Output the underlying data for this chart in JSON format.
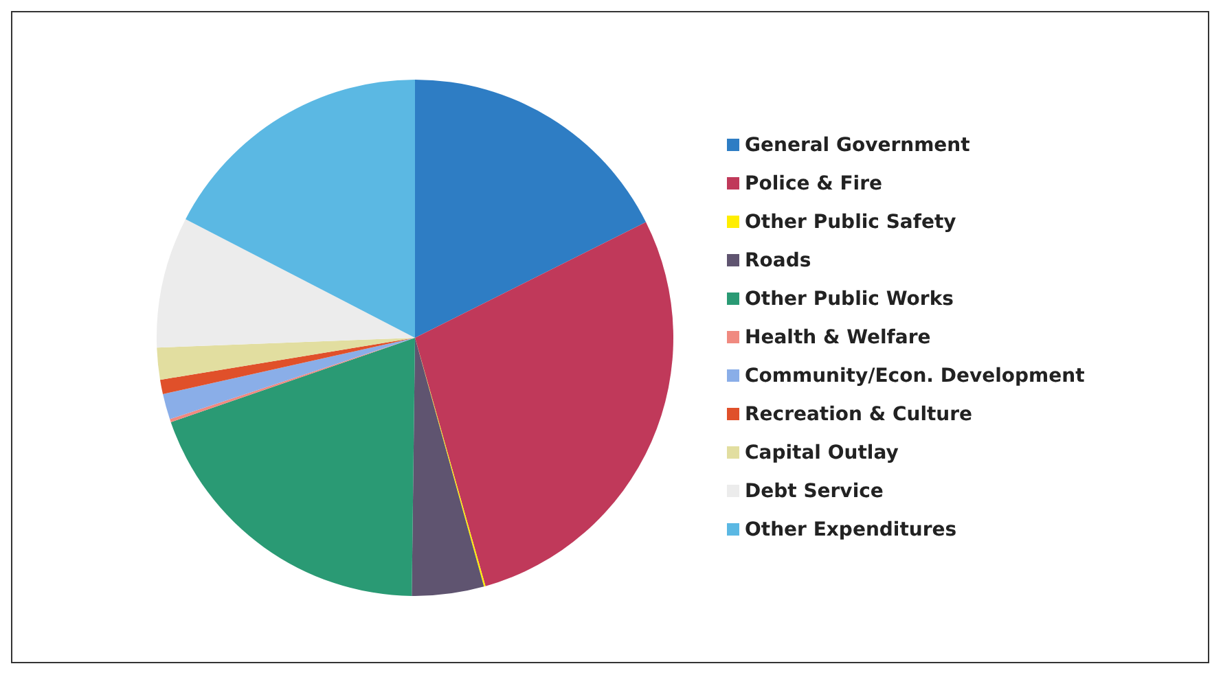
{
  "chart_data": {
    "type": "pie",
    "categories": [
      "General Government",
      "Police & Fire",
      "Other Public Safety",
      "Roads",
      "Other Public Works",
      "Health & Welfare",
      "Community/Econ. Development",
      "Recreation & Culture",
      "Capital Outlay",
      "Debt Service",
      "Other Expenditures"
    ],
    "values": [
      17.6,
      28.0,
      0.1,
      4.5,
      19.5,
      0.2,
      1.6,
      0.9,
      2.0,
      8.2,
      17.4
    ],
    "colors": [
      "#2e7dc4",
      "#c0395a",
      "#ffee00",
      "#5f5470",
      "#2a9a74",
      "#f08a80",
      "#8aaee8",
      "#e0502a",
      "#e2dea0",
      "#ececec",
      "#5bb8e3"
    ],
    "legend": "right"
  }
}
